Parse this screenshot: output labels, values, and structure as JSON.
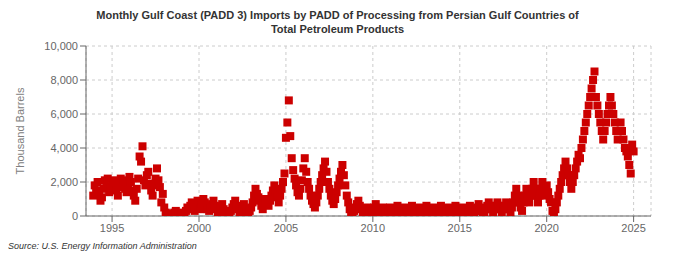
{
  "chart_data": {
    "type": "scatter",
    "title": "Monthly Gulf Coast (PADD 3) Imports by PADD of Processing from Persian Gulf Countries of\nTotal Petroleum Products",
    "ylabel": "Thousand Barrels",
    "annotations": [
      "Source: U.S. Energy Information Administration"
    ],
    "color": "#cc0000",
    "marker": "square",
    "grid": true,
    "xlim": [
      1993.5,
      2026.0
    ],
    "xticks": [
      1995,
      2000,
      2005,
      2010,
      2015,
      2020,
      2025
    ],
    "ylim": [
      0,
      10000
    ],
    "yticks": [
      0,
      {
        "value": 2000,
        "label": "2,000"
      },
      {
        "value": 4000,
        "label": "4,000"
      },
      {
        "value": 6000,
        "label": "6,000"
      },
      {
        "value": 8000,
        "label": "8,000"
      },
      {
        "value": 10000,
        "label": "10,000"
      }
    ],
    "x": [
      1993.917,
      1994.0,
      1994.083,
      1994.167,
      1994.25,
      1994.333,
      1994.417,
      1994.5,
      1994.583,
      1994.667,
      1994.75,
      1994.833,
      1994.917,
      1995.0,
      1995.083,
      1995.167,
      1995.25,
      1995.333,
      1995.417,
      1995.5,
      1995.583,
      1995.667,
      1995.75,
      1995.833,
      1995.917,
      1996.0,
      1996.083,
      1996.167,
      1996.25,
      1996.333,
      1996.417,
      1996.5,
      1996.583,
      1996.667,
      1996.75,
      1996.833,
      1996.917,
      1997.0,
      1997.083,
      1997.167,
      1997.25,
      1997.333,
      1997.417,
      1997.5,
      1997.583,
      1997.667,
      1997.75,
      1997.833,
      1997.917,
      1998.0,
      1998.083,
      1998.167,
      1998.25,
      1998.333,
      1998.417,
      1998.5,
      1998.583,
      1998.667,
      1998.75,
      1998.833,
      1998.917,
      1999.0,
      1999.083,
      1999.167,
      1999.25,
      1999.333,
      1999.417,
      1999.5,
      1999.583,
      1999.667,
      1999.75,
      1999.833,
      1999.917,
      2000.0,
      2000.083,
      2000.167,
      2000.25,
      2000.333,
      2000.417,
      2000.5,
      2000.583,
      2000.667,
      2000.75,
      2000.833,
      2000.917,
      2001.0,
      2001.083,
      2001.167,
      2001.25,
      2001.333,
      2001.417,
      2001.5,
      2001.583,
      2001.667,
      2001.75,
      2001.833,
      2001.917,
      2002.0,
      2002.083,
      2002.167,
      2002.25,
      2002.333,
      2002.417,
      2002.5,
      2002.583,
      2002.667,
      2002.75,
      2002.833,
      2002.917,
      2003.0,
      2003.083,
      2003.167,
      2003.25,
      2003.333,
      2003.417,
      2003.5,
      2003.583,
      2003.667,
      2003.75,
      2003.833,
      2003.917,
      2004.0,
      2004.083,
      2004.167,
      2004.25,
      2004.333,
      2004.417,
      2004.5,
      2004.583,
      2004.667,
      2004.75,
      2004.833,
      2004.917,
      2005.0,
      2005.083,
      2005.167,
      2005.25,
      2005.333,
      2005.417,
      2005.5,
      2005.583,
      2005.667,
      2005.75,
      2005.833,
      2005.917,
      2006.0,
      2006.083,
      2006.167,
      2006.25,
      2006.333,
      2006.417,
      2006.5,
      2006.583,
      2006.667,
      2006.75,
      2006.833,
      2006.917,
      2007.0,
      2007.083,
      2007.167,
      2007.25,
      2007.333,
      2007.417,
      2007.5,
      2007.583,
      2007.667,
      2007.75,
      2007.833,
      2007.917,
      2008.0,
      2008.083,
      2008.167,
      2008.25,
      2008.333,
      2008.417,
      2008.5,
      2008.583,
      2008.667,
      2008.75,
      2008.833,
      2008.917,
      2009.0,
      2009.083,
      2009.167,
      2009.25,
      2009.333,
      2009.417,
      2009.5,
      2009.583,
      2009.667,
      2009.75,
      2009.833,
      2009.917,
      2010.0,
      2010.083,
      2010.167,
      2010.25,
      2010.333,
      2010.417,
      2010.5,
      2010.583,
      2010.667,
      2010.75,
      2010.833,
      2010.917,
      2011.0,
      2011.083,
      2011.167,
      2011.25,
      2011.333,
      2011.417,
      2011.5,
      2011.583,
      2011.667,
      2011.75,
      2011.833,
      2011.917,
      2012.0,
      2012.083,
      2012.167,
      2012.25,
      2012.333,
      2012.417,
      2012.5,
      2012.583,
      2012.667,
      2012.75,
      2012.833,
      2012.917,
      2013.0,
      2013.083,
      2013.167,
      2013.25,
      2013.333,
      2013.417,
      2013.5,
      2013.583,
      2013.667,
      2013.75,
      2013.833,
      2013.917,
      2014.0,
      2014.083,
      2014.167,
      2014.25,
      2014.333,
      2014.417,
      2014.5,
      2014.583,
      2014.667,
      2014.75,
      2014.833,
      2014.917,
      2015.0,
      2015.083,
      2015.167,
      2015.25,
      2015.333,
      2015.417,
      2015.5,
      2015.583,
      2015.667,
      2015.75,
      2015.833,
      2015.917,
      2016.0,
      2016.083,
      2016.167,
      2016.25,
      2016.333,
      2016.417,
      2016.5,
      2016.583,
      2016.667,
      2016.75,
      2016.833,
      2016.917,
      2017.0,
      2017.083,
      2017.167,
      2017.25,
      2017.333,
      2017.417,
      2017.5,
      2017.583,
      2017.667,
      2017.75,
      2017.833,
      2017.917,
      2018.0,
      2018.083,
      2018.167,
      2018.25,
      2018.333,
      2018.417,
      2018.5,
      2018.583,
      2018.667,
      2018.75,
      2018.833,
      2018.917,
      2019.0,
      2019.083,
      2019.167,
      2019.25,
      2019.333,
      2019.417,
      2019.5,
      2019.583,
      2019.667,
      2019.75,
      2019.833,
      2019.917,
      2020.0,
      2020.083,
      2020.167,
      2020.25,
      2020.333,
      2020.417,
      2020.5,
      2020.583,
      2020.667,
      2020.75,
      2020.833,
      2020.917,
      2021.0,
      2021.083,
      2021.167,
      2021.25,
      2021.333,
      2021.417,
      2021.5,
      2021.583,
      2021.667,
      2021.75,
      2021.833,
      2021.917,
      2022.0,
      2022.083,
      2022.167,
      2022.25,
      2022.333,
      2022.417,
      2022.5,
      2022.583,
      2022.667,
      2022.75,
      2022.833,
      2022.917,
      2023.0,
      2023.083,
      2023.167,
      2023.25,
      2023.333,
      2023.417,
      2023.5,
      2023.583,
      2023.667,
      2023.75,
      2023.833,
      2023.917,
      2024.0,
      2024.083,
      2024.167,
      2024.25,
      2024.333,
      2024.417,
      2024.5,
      2024.583,
      2024.667,
      2024.75,
      2024.833,
      2024.917,
      2025.0
    ],
    "values": [
      1200,
      1800,
      1500,
      2000,
      1300,
      900,
      1100,
      1600,
      2100,
      1700,
      2200,
      1400,
      1600,
      2000,
      1800,
      2100,
      1500,
      1200,
      1900,
      2200,
      1700,
      2100,
      1600,
      1400,
      1800,
      2300,
      2000,
      1500,
      1200,
      900,
      1600,
      2200,
      3500,
      3200,
      4100,
      2100,
      1800,
      2400,
      2600,
      1900,
      1500,
      1200,
      1800,
      2200,
      2800,
      2100,
      1700,
      800,
      1300,
      500,
      200,
      100,
      50,
      150,
      80,
      100,
      200,
      300,
      150,
      80,
      50,
      100,
      200,
      150,
      300,
      500,
      400,
      600,
      800,
      500,
      300,
      700,
      900,
      600,
      400,
      700,
      1000,
      800,
      600,
      400,
      300,
      500,
      700,
      900,
      600,
      400,
      200,
      300,
      500,
      700,
      400,
      200,
      100,
      50,
      150,
      300,
      500,
      700,
      900,
      600,
      400,
      200,
      300,
      500,
      700,
      400,
      200,
      100,
      300,
      500,
      800,
      1200,
      1600,
      1300,
      1100,
      900,
      600,
      400,
      700,
      1000,
      800,
      600,
      900,
      1200,
      1500,
      1800,
      1400,
      1100,
      800,
      1200,
      1600,
      2000,
      2500,
      4600,
      5500,
      6800,
      4700,
      3400,
      2700,
      2200,
      1800,
      1400,
      1200,
      1600,
      2100,
      2800,
      3400,
      2600,
      2000,
      1600,
      1200,
      900,
      700,
      500,
      800,
      1200,
      1600,
      2000,
      2400,
      2800,
      3200,
      2600,
      2000,
      1600,
      1200,
      900,
      700,
      1000,
      1400,
      1800,
      2200,
      2600,
      3000,
      2400,
      1800,
      1200,
      800,
      400,
      200,
      100,
      300,
      500,
      700,
      900,
      600,
      400,
      200,
      100,
      300,
      500,
      400,
      200,
      100,
      300,
      500,
      700,
      400,
      200,
      100,
      300,
      500,
      400,
      200,
      100,
      300,
      500,
      300,
      100,
      200,
      400,
      600,
      400,
      200,
      100,
      300,
      500,
      300,
      100,
      200,
      400,
      600,
      400,
      200,
      100,
      300,
      500,
      300,
      100,
      200,
      400,
      600,
      400,
      200,
      100,
      300,
      500,
      300,
      100,
      200,
      400,
      600,
      400,
      200,
      100,
      300,
      500,
      300,
      100,
      200,
      400,
      600,
      400,
      200,
      100,
      300,
      500,
      300,
      100,
      200,
      400,
      600,
      400,
      200,
      100,
      300,
      500,
      700,
      500,
      300,
      100,
      200,
      400,
      600,
      800,
      600,
      400,
      200,
      400,
      600,
      800,
      600,
      400,
      200,
      400,
      600,
      800,
      600,
      400,
      200,
      500,
      800,
      1200,
      1600,
      1200,
      800,
      500,
      300,
      800,
      1200,
      1600,
      1200,
      800,
      1200,
      1600,
      2000,
      1600,
      1200,
      800,
      1200,
      1600,
      2000,
      1600,
      1200,
      1800,
      1400,
      1000,
      800,
      300,
      200,
      400,
      800,
      1200,
      1600,
      2000,
      2400,
      2800,
      3200,
      2800,
      2400,
      2000,
      1600,
      2000,
      2400,
      2800,
      3200,
      3600,
      3400,
      4000,
      4500,
      5000,
      5500,
      6000,
      6500,
      7000,
      7500,
      8000,
      8500,
      7000,
      6500,
      6000,
      5500,
      5000,
      4500,
      5000,
      5500,
      6000,
      6500,
      7000,
      6500,
      6000,
      5500,
      5000,
      4500,
      5000,
      5500,
      5000,
      4500,
      4000,
      3800,
      3500,
      3000,
      2500,
      4200,
      3800
    ]
  }
}
